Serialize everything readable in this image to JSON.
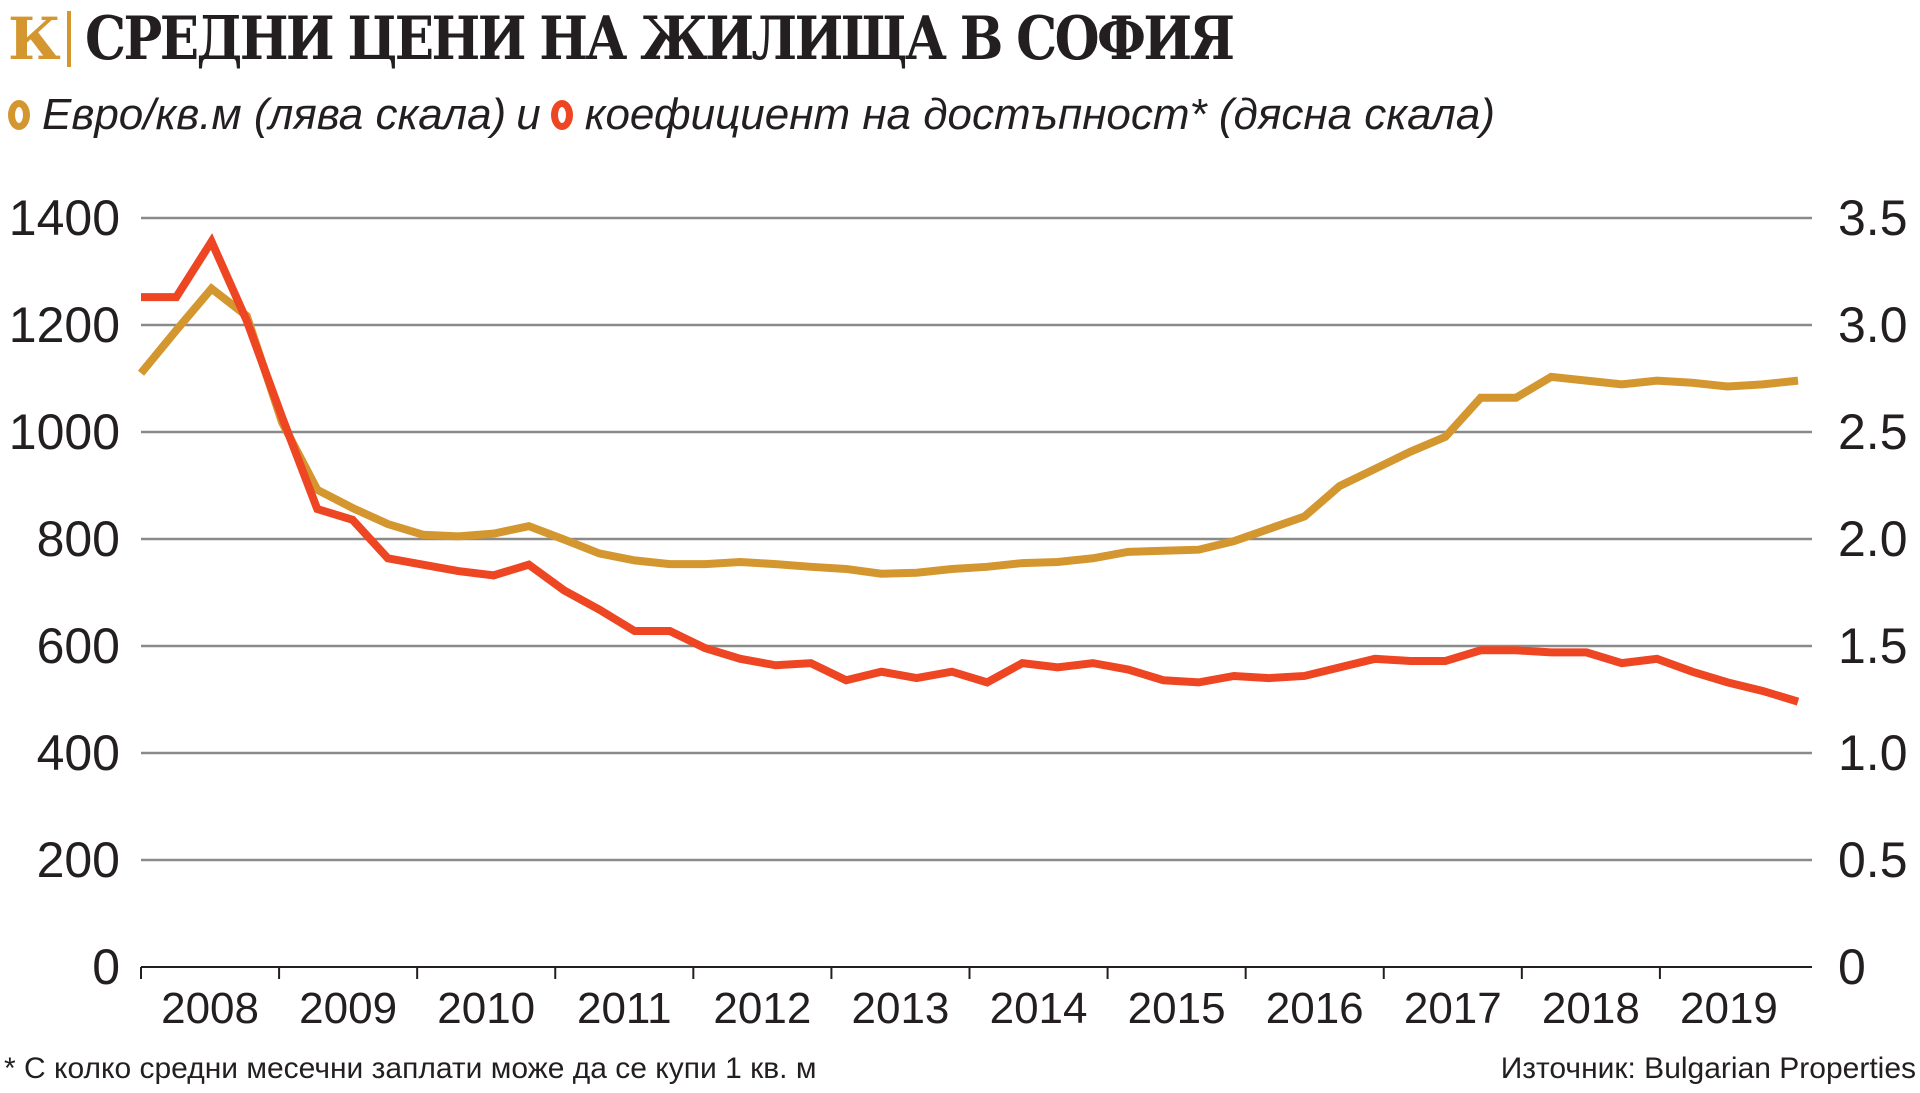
{
  "header": {
    "logo": "К",
    "title": "СРЕДНИ ЦЕНИ НА ЖИЛИЩА В СОФИЯ"
  },
  "legend": {
    "connector": "и"
  },
  "footnote": "* С колко средни месечни заплати може да се купи 1 кв. м",
  "source": "Източник: Bulgarian Properties",
  "chart_data": {
    "type": "line",
    "title": "СРЕДНИ ЦЕНИ НА ЖИЛИЩА В СОФИЯ",
    "x_tick_labels": [
      "2008",
      "2009",
      "2010",
      "2011",
      "2012",
      "2013",
      "2014",
      "2015",
      "2016",
      "2017",
      "2018",
      "2019"
    ],
    "x_frequency": "quarterly, 2008–2019",
    "left_axis": {
      "ylim": [
        0,
        1400
      ],
      "ticks": [
        "0",
        "200",
        "400",
        "600",
        "800",
        "1000",
        "1200",
        "1400"
      ]
    },
    "right_axis": {
      "ylim": [
        0,
        3.5
      ],
      "ticks": [
        "0",
        "0.5",
        "1.0",
        "1.5",
        "2.0",
        "2.5",
        "3.0",
        "3.5"
      ]
    },
    "grid": true,
    "legend_position": "top-left",
    "series": [
      {
        "name": "Евро/кв.м (лява скала)",
        "axis": "left",
        "color": "#d4962f",
        "values": [
          1110,
          1190,
          1268,
          1217,
          1018,
          892,
          858,
          828,
          808,
          805,
          810,
          824,
          799,
          773,
          760,
          753,
          753,
          757,
          753,
          748,
          744,
          735,
          737,
          744,
          748,
          755,
          757,
          764,
          776,
          778,
          780,
          796,
          819,
          842,
          899,
          931,
          963,
          991,
          1064,
          1064,
          1103,
          1096,
          1089,
          1096,
          1092,
          1085,
          1089,
          1096
        ]
      },
      {
        "name": "коефициент на достъпност* (дясна скала)",
        "axis": "right",
        "color": "#ee4523",
        "values": [
          3.13,
          3.13,
          3.39,
          3.02,
          2.57,
          2.14,
          2.09,
          1.91,
          1.88,
          1.85,
          1.83,
          1.88,
          1.76,
          1.67,
          1.57,
          1.57,
          1.49,
          1.44,
          1.41,
          1.42,
          1.34,
          1.38,
          1.35,
          1.38,
          1.33,
          1.42,
          1.4,
          1.42,
          1.39,
          1.34,
          1.33,
          1.36,
          1.35,
          1.36,
          1.4,
          1.44,
          1.43,
          1.43,
          1.48,
          1.48,
          1.47,
          1.47,
          1.42,
          1.44,
          1.38,
          1.33,
          1.29,
          1.24
        ]
      }
    ]
  }
}
